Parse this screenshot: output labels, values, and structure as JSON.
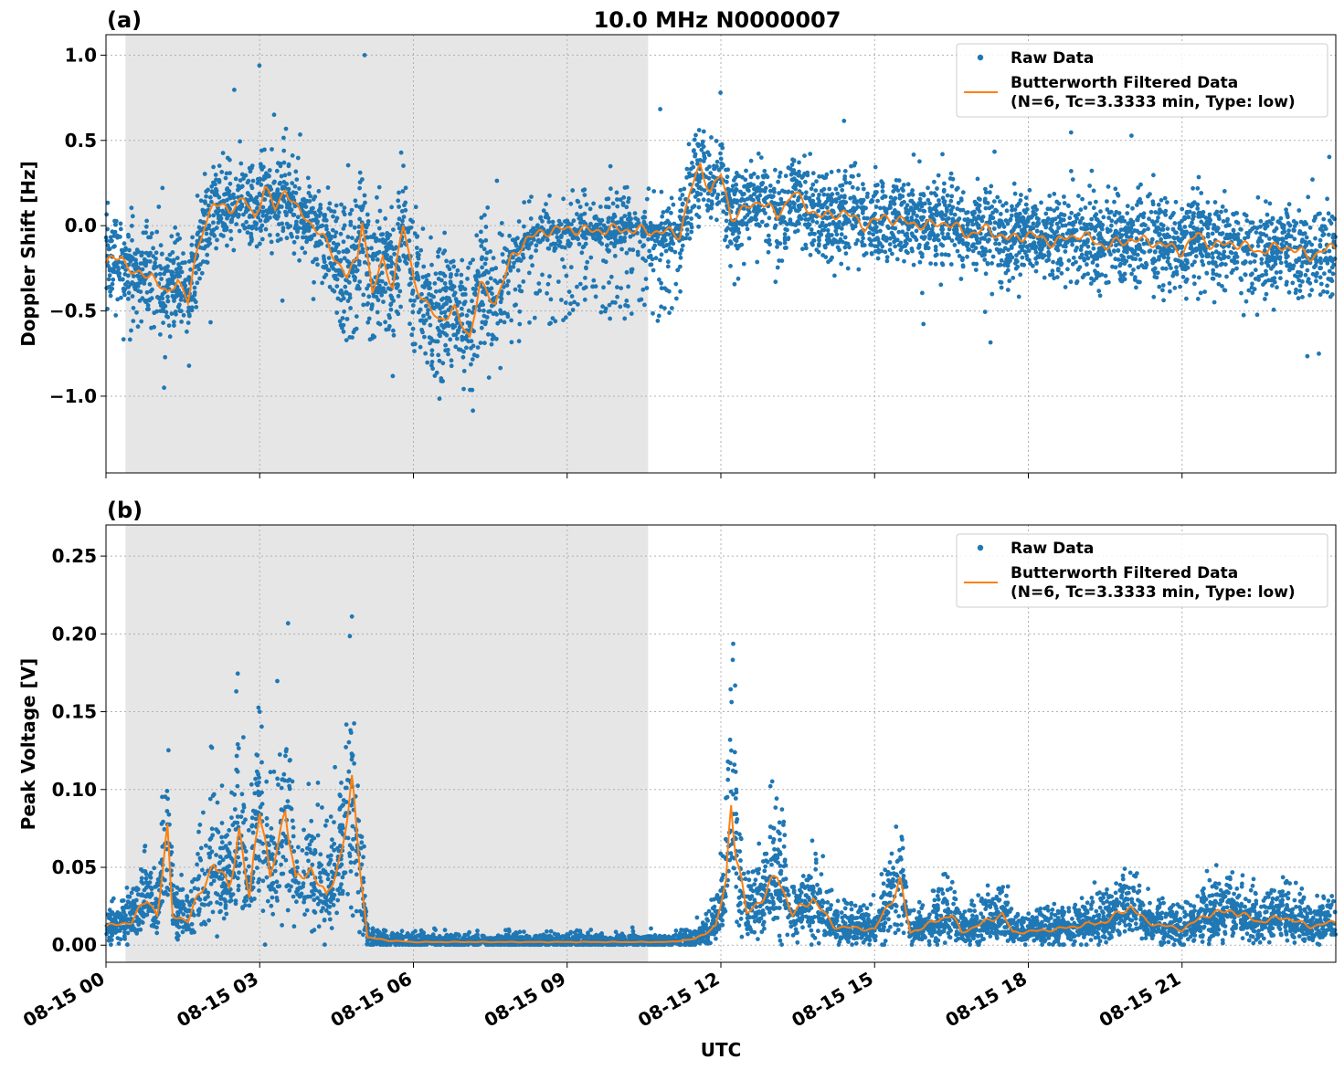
{
  "figure": {
    "title": "10.0 MHz N0000007",
    "xlabel": "UTC"
  },
  "colors": {
    "raw": "#1f77b4",
    "filtered": "#ff7f0e",
    "night_shade": "#e6e6e6"
  },
  "chart_data": [
    {
      "type": "scatter",
      "panel_label": "(a)",
      "ylabel": "Doppler Shift [Hz]",
      "xlim": [
        "08-15 00:00",
        "09-16 00:00"
      ],
      "x_domain_hours": [
        0,
        24
      ],
      "ylim": [
        -1.45,
        1.12
      ],
      "y_ticks": [
        1.0,
        0.5,
        0.0,
        -0.5,
        -1.0
      ],
      "y_tick_labels": [
        "1.0",
        "0.5",
        "0.0",
        "−0.5",
        "−1.0"
      ],
      "x_ticks_hours": [
        0,
        3,
        6,
        9,
        12,
        15,
        18,
        21
      ],
      "shaded_region_hours": [
        0.38,
        10.58
      ],
      "grid": true,
      "legend_position": "top-right",
      "legend": [
        "Raw Data",
        "Butterworth Filtered Data",
        "(N=6, Tc=3.3333 min, Type: low)"
      ],
      "filtered_profile": [
        [
          0,
          -0.22
        ],
        [
          0.3,
          -0.18
        ],
        [
          0.6,
          -0.3
        ],
        [
          0.9,
          -0.28
        ],
        [
          1.2,
          -0.42
        ],
        [
          1.4,
          -0.3
        ],
        [
          1.6,
          -0.45
        ],
        [
          1.75,
          -0.2
        ],
        [
          1.9,
          0.0
        ],
        [
          2.1,
          0.12
        ],
        [
          2.4,
          0.1
        ],
        [
          2.7,
          0.15
        ],
        [
          2.9,
          0.05
        ],
        [
          3.1,
          0.22
        ],
        [
          3.3,
          0.1
        ],
        [
          3.5,
          0.22
        ],
        [
          3.7,
          0.1
        ],
        [
          3.9,
          0.05
        ],
        [
          4.1,
          -0.02
        ],
        [
          4.3,
          -0.1
        ],
        [
          4.5,
          -0.2
        ],
        [
          4.7,
          -0.3
        ],
        [
          4.9,
          -0.2
        ],
        [
          5.0,
          0.05
        ],
        [
          5.2,
          -0.4
        ],
        [
          5.4,
          -0.2
        ],
        [
          5.6,
          -0.35
        ],
        [
          5.8,
          0.0
        ],
        [
          6.0,
          -0.3
        ],
        [
          6.2,
          -0.45
        ],
        [
          6.5,
          -0.55
        ],
        [
          6.8,
          -0.5
        ],
        [
          7.1,
          -0.65
        ],
        [
          7.3,
          -0.35
        ],
        [
          7.6,
          -0.45
        ],
        [
          7.9,
          -0.2
        ],
        [
          8.2,
          -0.08
        ],
        [
          8.6,
          -0.03
        ],
        [
          9.0,
          -0.02
        ],
        [
          9.5,
          -0.03
        ],
        [
          10.0,
          -0.02
        ],
        [
          10.5,
          -0.03
        ],
        [
          11.0,
          -0.04
        ],
        [
          11.2,
          -0.05
        ],
        [
          11.4,
          0.2
        ],
        [
          11.6,
          0.35
        ],
        [
          11.8,
          0.2
        ],
        [
          12.0,
          0.3
        ],
        [
          12.2,
          0.05
        ],
        [
          12.5,
          0.1
        ],
        [
          12.8,
          0.15
        ],
        [
          13.1,
          0.05
        ],
        [
          13.4,
          0.2
        ],
        [
          13.7,
          0.1
        ],
        [
          14.0,
          0.05
        ],
        [
          14.4,
          0.08
        ],
        [
          14.8,
          0.0
        ],
        [
          15.2,
          0.05
        ],
        [
          15.6,
          0.02
        ],
        [
          16.0,
          0.0
        ],
        [
          16.4,
          0.02
        ],
        [
          16.8,
          -0.05
        ],
        [
          17.2,
          -0.02
        ],
        [
          17.6,
          -0.08
        ],
        [
          18.0,
          -0.05
        ],
        [
          18.5,
          -0.1
        ],
        [
          19.0,
          -0.05
        ],
        [
          19.5,
          -0.12
        ],
        [
          20.0,
          -0.08
        ],
        [
          20.5,
          -0.1
        ],
        [
          21.0,
          -0.15
        ],
        [
          21.3,
          -0.05
        ],
        [
          21.6,
          -0.12
        ],
        [
          22.0,
          -0.1
        ],
        [
          22.5,
          -0.15
        ],
        [
          23.0,
          -0.12
        ],
        [
          23.5,
          -0.18
        ],
        [
          24.0,
          -0.12
        ]
      ]
    },
    {
      "type": "scatter",
      "panel_label": "(b)",
      "ylabel": "Peak Voltage [V]",
      "x_domain_hours": [
        0,
        24
      ],
      "ylim": [
        -0.011,
        0.27
      ],
      "y_ticks": [
        0.25,
        0.2,
        0.15,
        0.1,
        0.05,
        0.0
      ],
      "y_tick_labels": [
        "0.25",
        "0.20",
        "0.15",
        "0.10",
        "0.05",
        "0.00"
      ],
      "x_ticks_hours": [
        0,
        3,
        6,
        9,
        12,
        15,
        18,
        21
      ],
      "x_tick_labels": [
        "08-15 00",
        "08-15 03",
        "08-15 06",
        "08-15 09",
        "08-15 12",
        "08-15 15",
        "08-15 18",
        "08-15 21"
      ],
      "shaded_region_hours": [
        0.38,
        10.58
      ],
      "grid": true,
      "legend_position": "top-right",
      "legend": [
        "Raw Data",
        "Butterworth Filtered Data",
        "(N=6, Tc=3.3333 min, Type: low)"
      ],
      "filtered_profile": [
        [
          0,
          0.012
        ],
        [
          0.5,
          0.015
        ],
        [
          0.8,
          0.03
        ],
        [
          1.0,
          0.02
        ],
        [
          1.2,
          0.07
        ],
        [
          1.3,
          0.02
        ],
        [
          1.6,
          0.015
        ],
        [
          1.9,
          0.04
        ],
        [
          2.1,
          0.05
        ],
        [
          2.4,
          0.04
        ],
        [
          2.6,
          0.07
        ],
        [
          2.8,
          0.03
        ],
        [
          3.0,
          0.095
        ],
        [
          3.2,
          0.04
        ],
        [
          3.5,
          0.09
        ],
        [
          3.7,
          0.04
        ],
        [
          4.0,
          0.05
        ],
        [
          4.3,
          0.03
        ],
        [
          4.6,
          0.06
        ],
        [
          4.8,
          0.1
        ],
        [
          5.0,
          0.04
        ],
        [
          5.1,
          0.005
        ],
        [
          5.5,
          0.003
        ],
        [
          6.0,
          0.002
        ],
        [
          7.0,
          0.002
        ],
        [
          8.0,
          0.002
        ],
        [
          9.0,
          0.002
        ],
        [
          10.0,
          0.002
        ],
        [
          11.0,
          0.002
        ],
        [
          11.5,
          0.004
        ],
        [
          11.9,
          0.012
        ],
        [
          12.1,
          0.04
        ],
        [
          12.2,
          0.095
        ],
        [
          12.3,
          0.06
        ],
        [
          12.5,
          0.02
        ],
        [
          12.8,
          0.03
        ],
        [
          13.1,
          0.045
        ],
        [
          13.4,
          0.02
        ],
        [
          13.8,
          0.03
        ],
        [
          14.2,
          0.012
        ],
        [
          15.0,
          0.01
        ],
        [
          15.5,
          0.04
        ],
        [
          15.7,
          0.008
        ],
        [
          16.5,
          0.02
        ],
        [
          16.7,
          0.008
        ],
        [
          17.5,
          0.02
        ],
        [
          17.7,
          0.008
        ],
        [
          18.5,
          0.01
        ],
        [
          19.5,
          0.015
        ],
        [
          20.0,
          0.025
        ],
        [
          20.3,
          0.015
        ],
        [
          21.0,
          0.01
        ],
        [
          21.5,
          0.02
        ],
        [
          22.0,
          0.022
        ],
        [
          22.5,
          0.015
        ],
        [
          23.0,
          0.018
        ],
        [
          23.5,
          0.012
        ],
        [
          24.0,
          0.015
        ]
      ]
    }
  ]
}
